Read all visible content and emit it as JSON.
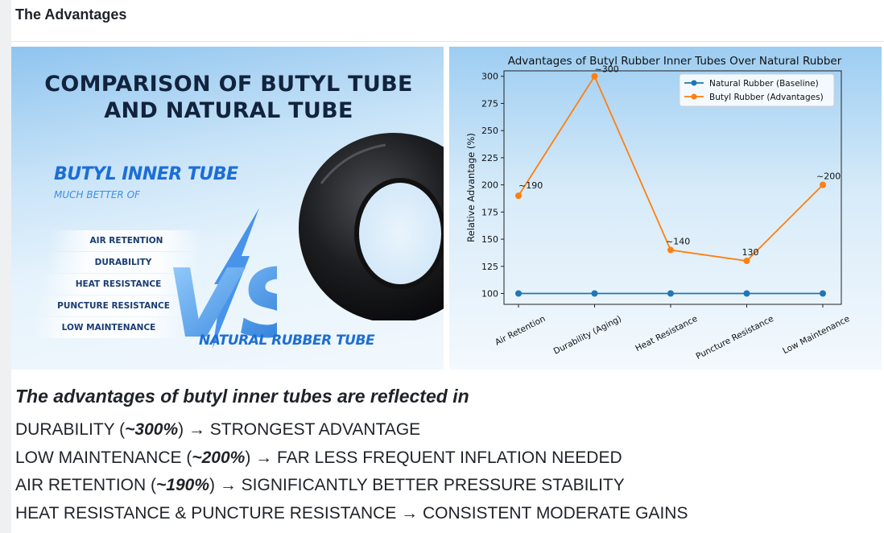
{
  "section": {
    "title": "The Advantages"
  },
  "promo": {
    "title_line1": "COMPARISON OF BUTYL TUBE",
    "title_line2": "AND NATURAL TUBE",
    "butyl_label": "BUTYL INNER TUBE",
    "butyl_sub": "MUCH BETTER OF",
    "features": [
      "AIR RETENTION",
      "DURABILITY",
      "HEAT RESISTANCE",
      "PUNCTURE RESISTANCE",
      "LOW MAINTENANCE"
    ],
    "vs": "VS",
    "natural_label": "NATURAL RUBBER TUBE",
    "accent_color": "#1c6ed6"
  },
  "chart_data": {
    "type": "line",
    "title": "Advantages of Butyl Rubber Inner Tubes Over Natural Rubber",
    "xlabel": "",
    "ylabel": "Relative Advantage (%)",
    "categories": [
      "Air Retention",
      "Durability (Aging)",
      "Heat Resistance",
      "Puncture Resistance",
      "Low Maintenance"
    ],
    "ylim": [
      90,
      305
    ],
    "yticks": [
      100,
      125,
      150,
      175,
      200,
      225,
      250,
      275,
      300
    ],
    "grid": false,
    "legend_position": "top-right",
    "series": [
      {
        "name": "Natural Rubber (Baseline)",
        "values": [
          100,
          100,
          100,
          100,
          100
        ],
        "color": "#1f77b4"
      },
      {
        "name": "Butyl Rubber (Advantages)",
        "values": [
          190,
          300,
          140,
          130,
          200
        ],
        "color": "#ff7f0e"
      }
    ],
    "annotations": [
      "~190",
      "~300",
      "~140",
      "130",
      "~200"
    ]
  },
  "summary": {
    "heading": "The advantages of butyl inner tubes are reflected in",
    "lines": [
      {
        "pre": "DURABILITY (",
        "value": "~300%",
        "post": ") → STRONGEST ADVANTAGE"
      },
      {
        "pre": "LOW MAINTENANCE (",
        "value": "~200%",
        "post": ") → FAR LESS FREQUENT INFLATION NEEDED"
      },
      {
        "pre": "AIR RETENTION (",
        "value": "~190%",
        "post": ") → SIGNIFICANTLY BETTER PRESSURE STABILITY"
      },
      {
        "text": "HEAT RESISTANCE & PUNCTURE RESISTANCE → CONSISTENT MODERATE GAINS"
      }
    ]
  }
}
